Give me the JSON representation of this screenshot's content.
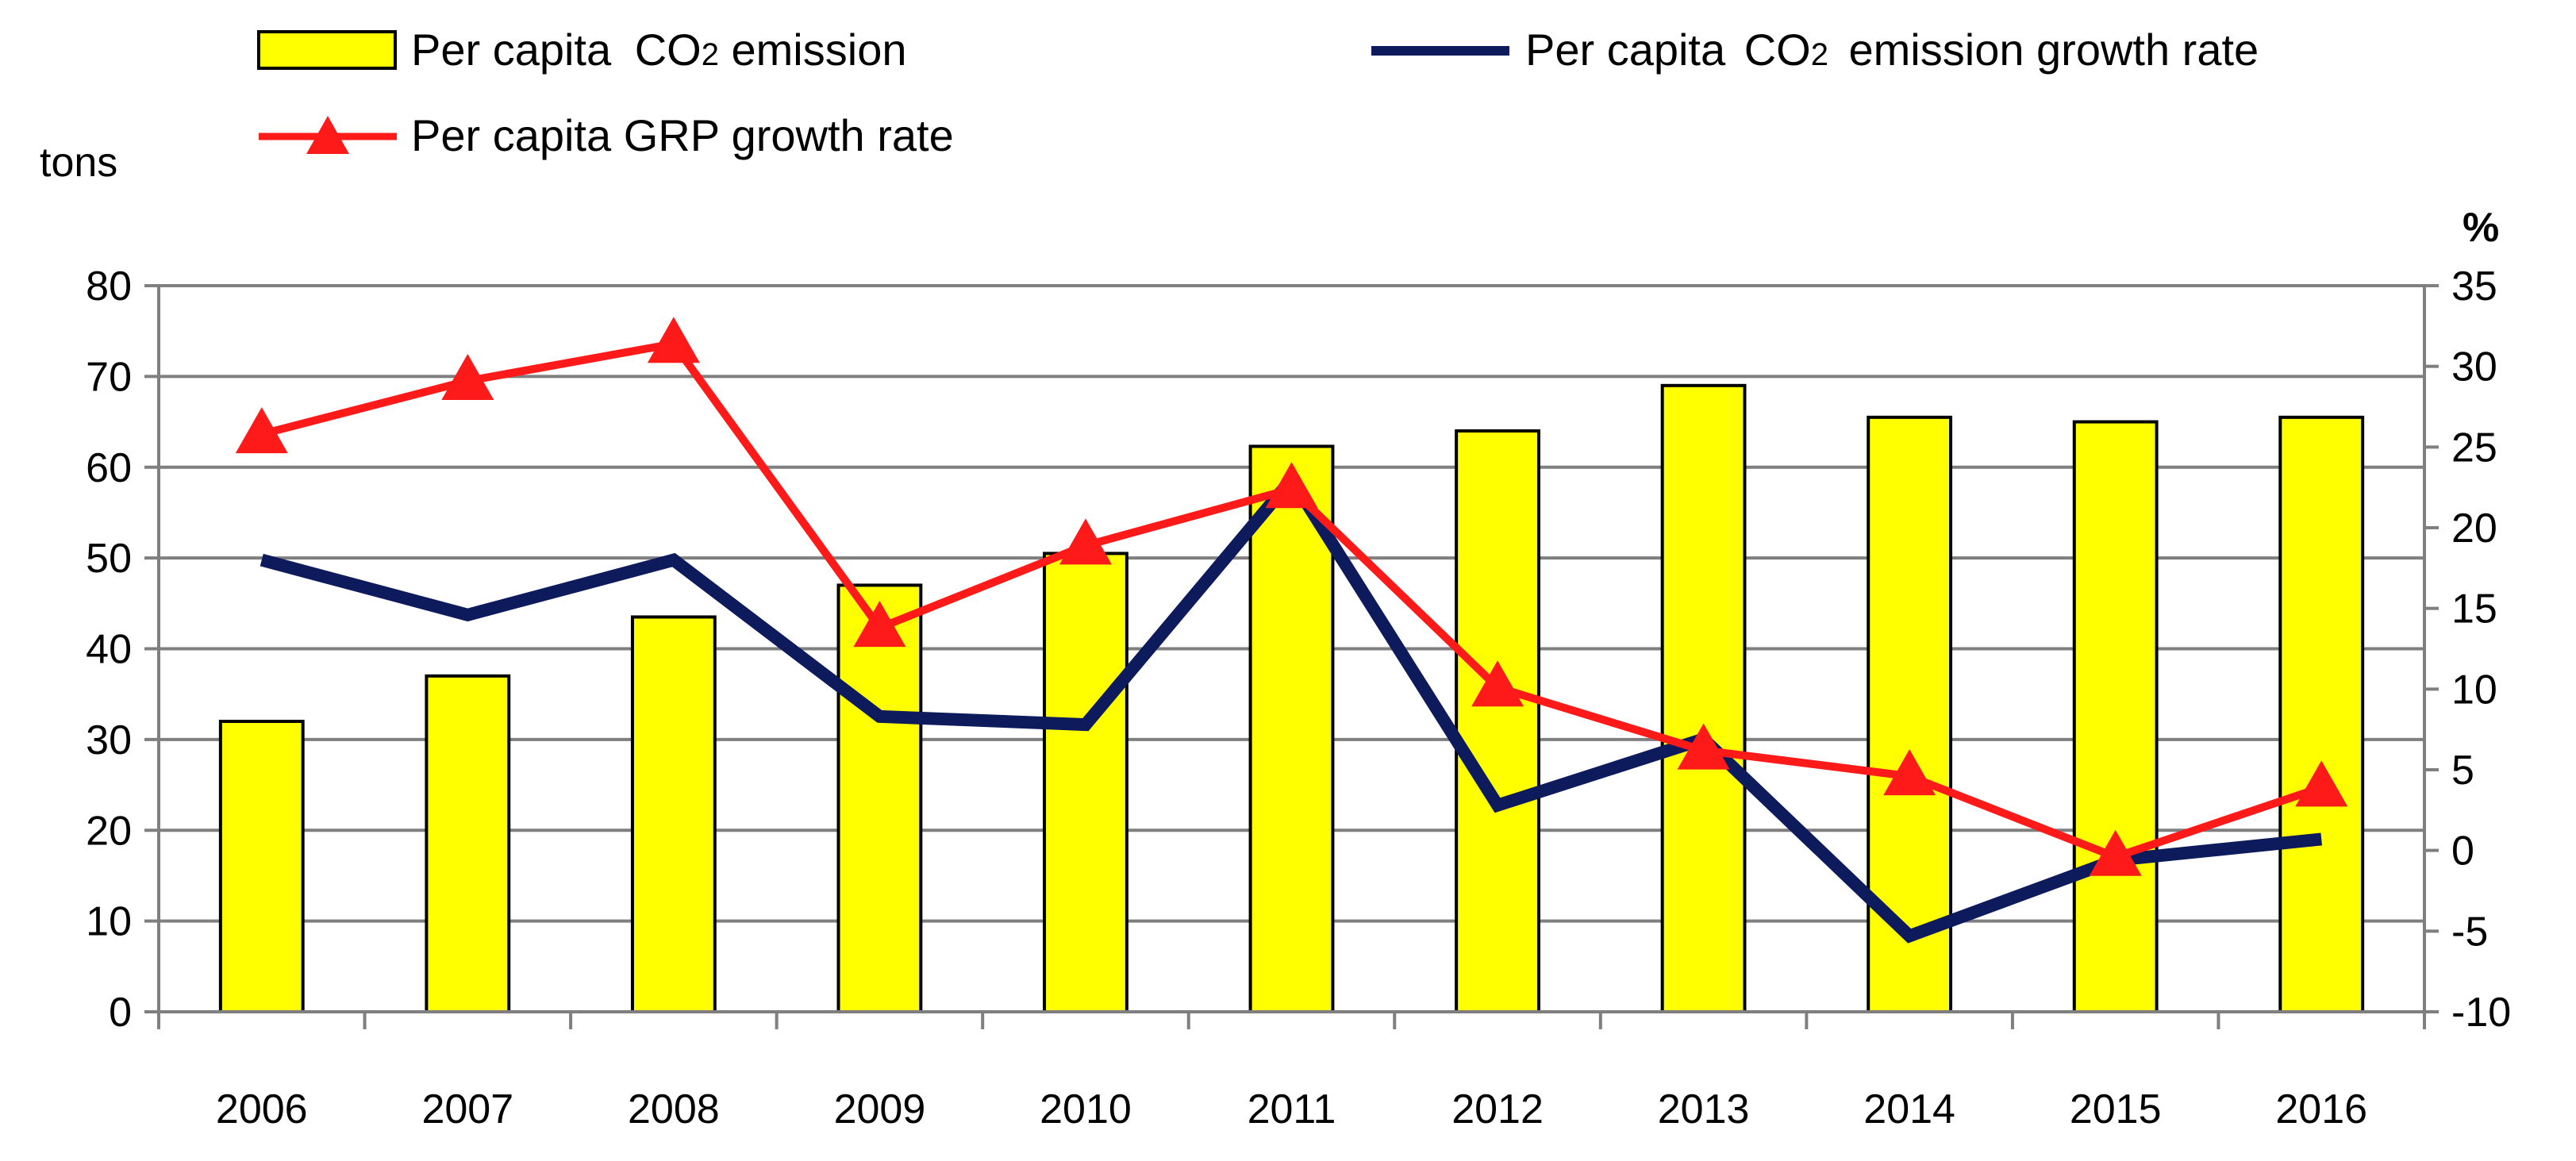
{
  "chart_data": {
    "type": "bar",
    "categories": [
      "2006",
      "2007",
      "2008",
      "2009",
      "2010",
      "2011",
      "2012",
      "2013",
      "2014",
      "2015",
      "2016"
    ],
    "series": [
      {
        "name": "Per capita CO2 emission",
        "kind": "bar",
        "axis": "left",
        "color": "#FFFF00",
        "values": [
          32,
          37,
          43.5,
          47,
          50.5,
          62.3,
          64,
          69,
          65.5,
          65,
          65.5
        ]
      },
      {
        "name": "Per capita CO2 emission growth rate",
        "kind": "line",
        "axis": "right",
        "color": "#0D1A5C",
        "values": [
          18,
          14.6,
          18,
          8.3,
          7.8,
          23,
          2.8,
          6.9,
          -5.3,
          -0.6,
          0.7
        ]
      },
      {
        "name": "Per capita GRP growth rate",
        "kind": "line",
        "marker": "triangle",
        "axis": "right",
        "color": "#FF1A1A",
        "values": [
          25.8,
          29.1,
          31.4,
          13.8,
          18.9,
          22.4,
          10.1,
          6.2,
          4.6,
          -0.4,
          3.9
        ]
      }
    ],
    "y_left": {
      "label": "tons",
      "min": 0,
      "max": 80,
      "ticks": [
        "0",
        "10",
        "20",
        "30",
        "40",
        "50",
        "60",
        "70",
        "80"
      ]
    },
    "y_right": {
      "label": "%",
      "min": -10,
      "max": 35,
      "ticks": [
        "-10",
        "-5",
        "0",
        "5",
        "10",
        "15",
        "20",
        "25",
        "30",
        "35"
      ]
    },
    "grid": true,
    "legend_position": "top",
    "legend": {
      "bar_prefix": "Per capita ",
      "bar_co": "CO",
      "bar_sub": "2",
      "bar_suffix": " emission",
      "co2_prefix": "Per capita ",
      "co2_co": "CO",
      "co2_sub": "2",
      "co2_suffix": " emission growth rate",
      "grp_label": "Per capita GRP growth rate"
    }
  }
}
